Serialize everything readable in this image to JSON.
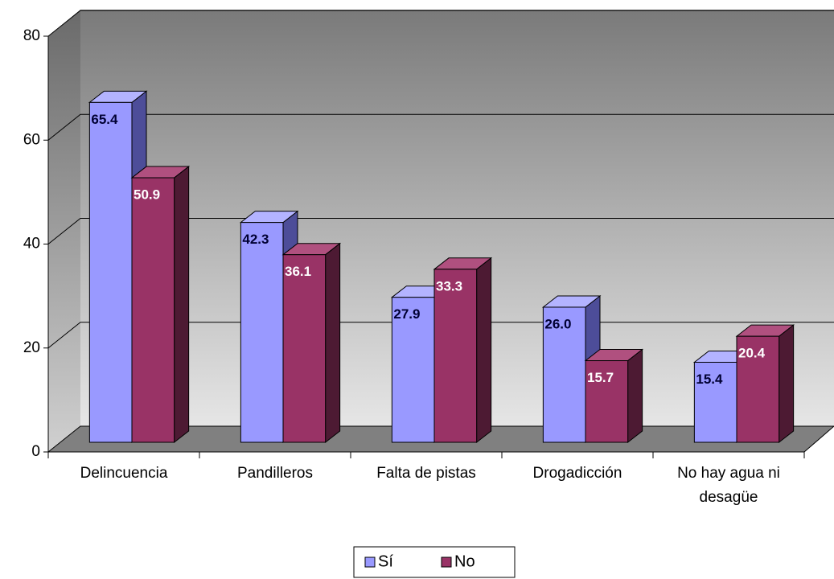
{
  "chart_data": {
    "type": "bar3d",
    "categories": [
      "Delincuencia",
      "Pandilleros",
      "Falta de pistas",
      "Drogadicción",
      "No hay agua ni desagüe"
    ],
    "series": [
      {
        "name": "Sí",
        "color": "#9999ff",
        "values": [
          65.4,
          42.3,
          27.9,
          26.0,
          15.4
        ],
        "value_labels": [
          "65.4",
          "42.3",
          "27.9",
          "26.0",
          "15.4"
        ]
      },
      {
        "name": "No",
        "color": "#993366",
        "values": [
          50.9,
          36.1,
          33.3,
          15.7,
          20.4
        ],
        "value_labels": [
          "50.9",
          "36.1",
          "33.3",
          "15.7",
          "20.4"
        ]
      }
    ],
    "ylim": [
      0,
      80
    ],
    "yticks": [
      0,
      20,
      40,
      60,
      80
    ],
    "grid": true,
    "legend": "bottom"
  }
}
